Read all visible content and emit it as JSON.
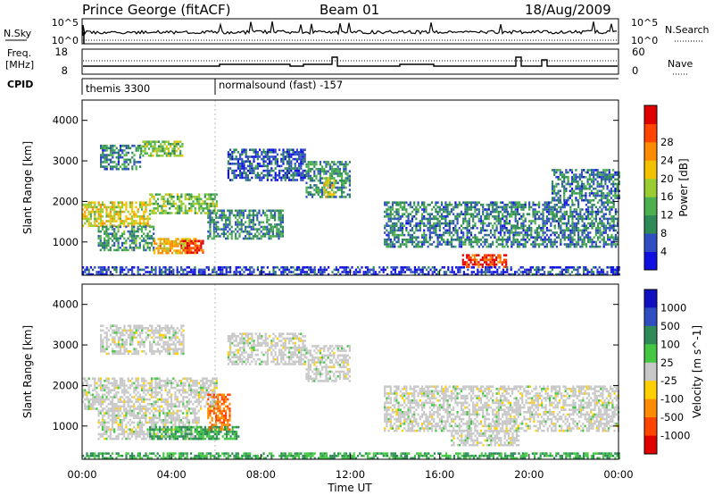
{
  "header": {
    "station": "Prince George (fitACF)",
    "beam": "Beam 01",
    "date": "18/Aug/2009"
  },
  "top_panels": {
    "nsky_label": "N.Sky",
    "nsky_ticks": [
      "10^5",
      "10^0"
    ],
    "nsearch_label": "N.Search",
    "freq_label": "Freq.",
    "freq_unit": "[MHz]",
    "freq_ticks": [
      "18",
      "8"
    ],
    "nave_label": "Nave",
    "nave_ticks": [
      "60",
      "0"
    ],
    "cpid_label": "CPID",
    "cpid_segments": [
      {
        "label": "themis 3300",
        "start_hour": 0,
        "end_hour": 6
      },
      {
        "label": "normalsound (fast) -157",
        "start_hour": 6,
        "end_hour": 24
      }
    ]
  },
  "chart_data": [
    {
      "type": "heatmap",
      "panel": "power",
      "xlabel": "",
      "ylabel": "Slant Range [km]",
      "colorbar_label": "Power [dB]",
      "colorbar_ticks": [
        "4",
        "8",
        "12",
        "16",
        "20",
        "24",
        "28"
      ],
      "colorscale": [
        "#1010e0",
        "#2f4fc0",
        "#2e8b57",
        "#4caf50",
        "#9acd32",
        "#f2c200",
        "#ff8c00",
        "#ff4500",
        "#e00000"
      ],
      "xlim": [
        0,
        24
      ],
      "ylim": [
        180,
        4500
      ],
      "x_ticks": [
        "00:00",
        "04:00",
        "08:00",
        "12:00",
        "16:00",
        "20:00",
        "00:00"
      ],
      "y_ticks": [
        "1000",
        "2000",
        "3000",
        "4000"
      ],
      "echo_regions": [
        {
          "x0": 0.0,
          "x1": 3.0,
          "y0": 1400,
          "y1": 2000,
          "level": 18
        },
        {
          "x0": 3.0,
          "x1": 6.0,
          "y0": 1700,
          "y1": 2200,
          "level": 14
        },
        {
          "x0": 0.8,
          "x1": 2.6,
          "y0": 2800,
          "y1": 3400,
          "level": 8
        },
        {
          "x0": 2.6,
          "x1": 4.5,
          "y0": 3100,
          "y1": 3500,
          "level": 14
        },
        {
          "x0": 0.7,
          "x1": 3.2,
          "y0": 800,
          "y1": 1400,
          "level": 10
        },
        {
          "x0": 3.2,
          "x1": 5.2,
          "y0": 700,
          "y1": 1100,
          "level": 20
        },
        {
          "x0": 4.4,
          "x1": 5.4,
          "y0": 750,
          "y1": 1050,
          "level": 28
        },
        {
          "x0": 5.6,
          "x1": 9.0,
          "y0": 1100,
          "y1": 1800,
          "level": 9
        },
        {
          "x0": 6.5,
          "x1": 10.0,
          "y0": 2500,
          "y1": 3300,
          "level": 6
        },
        {
          "x0": 10.0,
          "x1": 12.0,
          "y0": 2100,
          "y1": 3000,
          "level": 9
        },
        {
          "x0": 10.8,
          "x1": 11.3,
          "y0": 2100,
          "y1": 2600,
          "level": 18
        },
        {
          "x0": 13.5,
          "x1": 19.0,
          "y0": 900,
          "y1": 2000,
          "level": 8
        },
        {
          "x0": 17.0,
          "x1": 19.0,
          "y0": 400,
          "y1": 700,
          "level": 28
        },
        {
          "x0": 19.0,
          "x1": 24.0,
          "y0": 900,
          "y1": 2000,
          "level": 8
        },
        {
          "x0": 21.0,
          "x1": 24.0,
          "y0": 2000,
          "y1": 2800,
          "level": 8
        },
        {
          "x0": 0.0,
          "x1": 24.0,
          "y0": 180,
          "y1": 400,
          "level": 4
        }
      ]
    },
    {
      "type": "heatmap",
      "panel": "velocity",
      "xlabel": "Time UT",
      "ylabel": "Slant Range [km]",
      "colorbar_label": "Velocity [m s^-1]",
      "colorbar_ticks": [
        "1000",
        "500",
        "100",
        "25",
        "-25",
        "-100",
        "-500",
        "-1000"
      ],
      "colorscale": [
        "#1010c0",
        "#2f4fc0",
        "#2e8b57",
        "#44c844",
        "#c8c8c8",
        "#ffd000",
        "#ff8c00",
        "#ff4500",
        "#e00000"
      ],
      "xlim": [
        0,
        24
      ],
      "ylim": [
        180,
        4500
      ],
      "x_ticks": [
        "00:00",
        "04:00",
        "08:00",
        "12:00",
        "16:00",
        "20:00",
        "00:00"
      ],
      "y_ticks": [
        "1000",
        "2000",
        "3000",
        "4000"
      ],
      "echo_regions": [
        {
          "x0": 0.0,
          "x1": 6.0,
          "y0": 1400,
          "y1": 2200,
          "value": 0
        },
        {
          "x0": 0.8,
          "x1": 4.5,
          "y0": 2800,
          "y1": 3500,
          "value": 0
        },
        {
          "x0": 0.7,
          "x1": 5.2,
          "y0": 700,
          "y1": 1400,
          "value": 0
        },
        {
          "x0": 3.0,
          "x1": 6.0,
          "y0": 700,
          "y1": 1000,
          "value": 60
        },
        {
          "x0": 5.6,
          "x1": 6.6,
          "y0": 900,
          "y1": 1800,
          "value": -300
        },
        {
          "x0": 5.2,
          "x1": 7.0,
          "y0": 700,
          "y1": 1000,
          "value": 60
        },
        {
          "x0": 6.5,
          "x1": 10.0,
          "y0": 2500,
          "y1": 3300,
          "value": 0
        },
        {
          "x0": 10.0,
          "x1": 12.0,
          "y0": 2100,
          "y1": 3000,
          "value": 0
        },
        {
          "x0": 13.5,
          "x1": 24.0,
          "y0": 900,
          "y1": 2000,
          "value": 0
        },
        {
          "x0": 16.5,
          "x1": 19.5,
          "y0": 500,
          "y1": 900,
          "value": 0
        },
        {
          "x0": 0.0,
          "x1": 24.0,
          "y0": 180,
          "y1": 350,
          "value": 60
        }
      ]
    }
  ]
}
